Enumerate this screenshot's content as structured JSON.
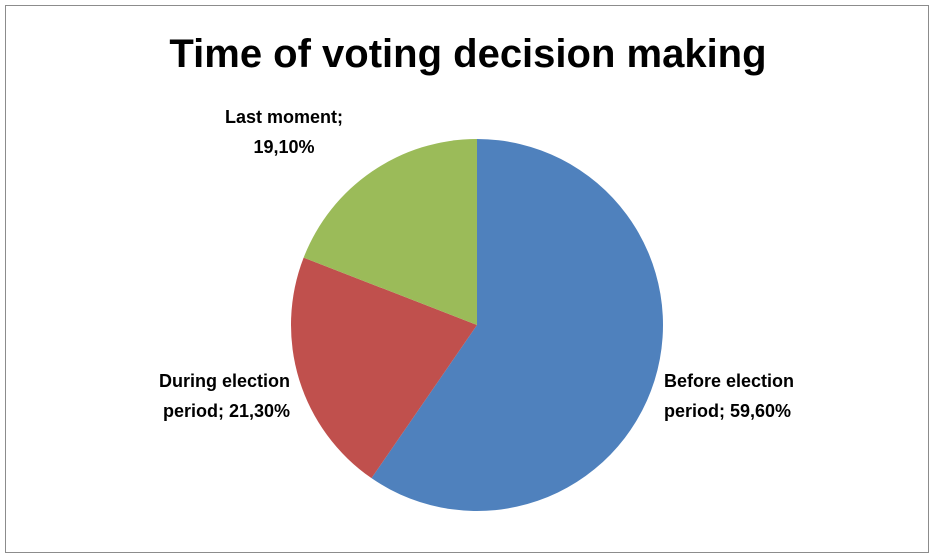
{
  "chart_data": {
    "type": "pie",
    "title": "Time of voting decision making",
    "categories": [
      "Before election period",
      "During election period",
      "Last moment"
    ],
    "values": [
      59.6,
      21.3,
      19.1
    ],
    "data_labels": [
      [
        "Before election",
        "period; 59,60%"
      ],
      [
        "During election",
        "period; 21,30%"
      ],
      [
        "Last moment;",
        "19,10%"
      ]
    ],
    "colors": [
      "#4f81bd",
      "#c0504d",
      "#9bbb59"
    ],
    "start_angle": "12 o'clock",
    "direction": "clockwise",
    "legend": "none"
  }
}
